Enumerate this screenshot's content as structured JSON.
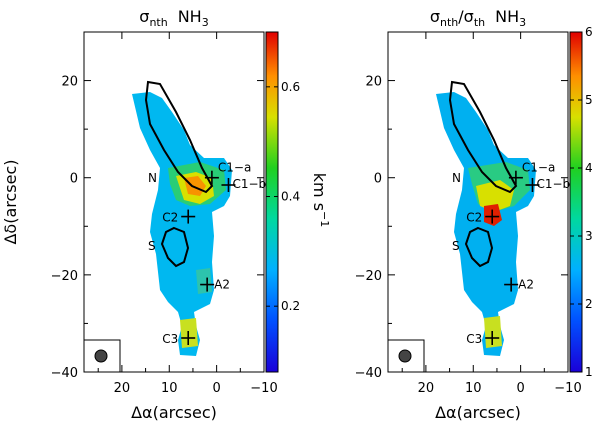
{
  "chart_data": [
    {
      "type": "heatmap",
      "title_sigma": "σ",
      "title_sub": "nth",
      "title_species": "NH",
      "title_species_sub": "3",
      "xlabel": "Δα(arcsec)",
      "ylabel": "Δδ(arcsec)",
      "xlim": [
        28,
        -10
      ],
      "ylim": [
        -40,
        30
      ],
      "x_ticks": [
        20,
        10,
        0,
        -10
      ],
      "x_tick_labels": [
        "20",
        "10",
        "0",
        "−10"
      ],
      "y_ticks": [
        20,
        0,
        -20,
        -40
      ],
      "y_tick_labels": [
        "20",
        "0",
        "−20",
        "−40"
      ],
      "colorbar": {
        "range": [
          0.08,
          0.7
        ],
        "ticks": [
          0.2,
          0.4,
          0.6
        ],
        "tick_labels": [
          "0.2",
          "0.4",
          "0.6"
        ],
        "label": "km s",
        "label_exp": "−1"
      },
      "sources": [
        {
          "name": "C1−a",
          "x": 1,
          "y": 0
        },
        {
          "name": "C1−b",
          "x": -2.5,
          "y": -1.5
        },
        {
          "name": "C2",
          "x": 6,
          "y": -8
        },
        {
          "name": "A2",
          "x": 2,
          "y": -22
        },
        {
          "name": "C3",
          "x": 6,
          "y": -33
        }
      ],
      "regions": [
        "N",
        "S"
      ]
    },
    {
      "type": "heatmap",
      "title_sigma": "σ",
      "title_sub": "nth",
      "title_sep": "/σ",
      "title_sub2": "th",
      "title_species": "NH",
      "title_species_sub": "3",
      "xlabel": "Δα(arcsec)",
      "ylabel": "",
      "xlim": [
        28,
        -10
      ],
      "ylim": [
        -40,
        30
      ],
      "x_ticks": [
        20,
        10,
        0,
        -10
      ],
      "x_tick_labels": [
        "20",
        "10",
        "0",
        "−10"
      ],
      "y_ticks": [
        20,
        0,
        -20,
        -40
      ],
      "y_tick_labels": [
        "20",
        "0",
        "−20",
        "−40"
      ],
      "colorbar": {
        "range": [
          1,
          6
        ],
        "ticks": [
          1,
          2,
          3,
          4,
          5,
          6
        ],
        "tick_labels": [
          "1",
          "2",
          "3",
          "4",
          "5",
          "6"
        ]
      },
      "sources": [
        {
          "name": "C1−a",
          "x": 1,
          "y": 0
        },
        {
          "name": "C1−b",
          "x": -2.5,
          "y": -1.5
        },
        {
          "name": "C2",
          "x": 6,
          "y": -8
        },
        {
          "name": "A2",
          "x": 2,
          "y": -22
        },
        {
          "name": "C3",
          "x": 6,
          "y": -33
        }
      ],
      "regions": [
        "N",
        "S"
      ]
    }
  ]
}
